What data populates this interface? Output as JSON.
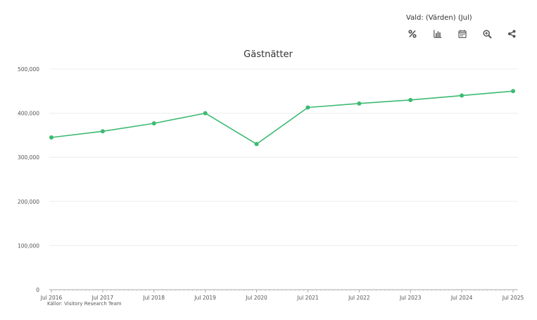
{
  "selection_label": "Vald: (Värden) (Jul)",
  "toolbar": {
    "icons": [
      "percent-icon",
      "bar-chart-icon",
      "calendar-icon",
      "zoom-in-icon",
      "share-icon"
    ]
  },
  "source_label": "Källor: Visitory Research Team",
  "colors": {
    "line": "#3dba72",
    "grid": "#ececec",
    "axis": "#aaaaaa",
    "text": "#555555"
  },
  "chart_data": {
    "type": "line",
    "title": "Gästnätter",
    "xlabel": "",
    "ylabel": "",
    "categories": [
      "Jul 2016",
      "Jul 2017",
      "Jul 2018",
      "Jul 2019",
      "Jul 2020",
      "Jul 2021",
      "Jul 2022",
      "Jul 2023",
      "Jul 2024",
      "Jul 2025"
    ],
    "series": [
      {
        "values": [
          345000,
          359000,
          377000,
          400000,
          330000,
          413000,
          422000,
          430000,
          440000,
          450000
        ]
      }
    ],
    "ylim": [
      0,
      500000
    ],
    "yticks": [
      0,
      100000,
      200000,
      300000,
      400000,
      500000
    ],
    "ytick_labels": [
      "0",
      "100,000",
      "200,000",
      "300,000",
      "400,000",
      "500,000"
    ],
    "grid": true,
    "legend": "none"
  }
}
